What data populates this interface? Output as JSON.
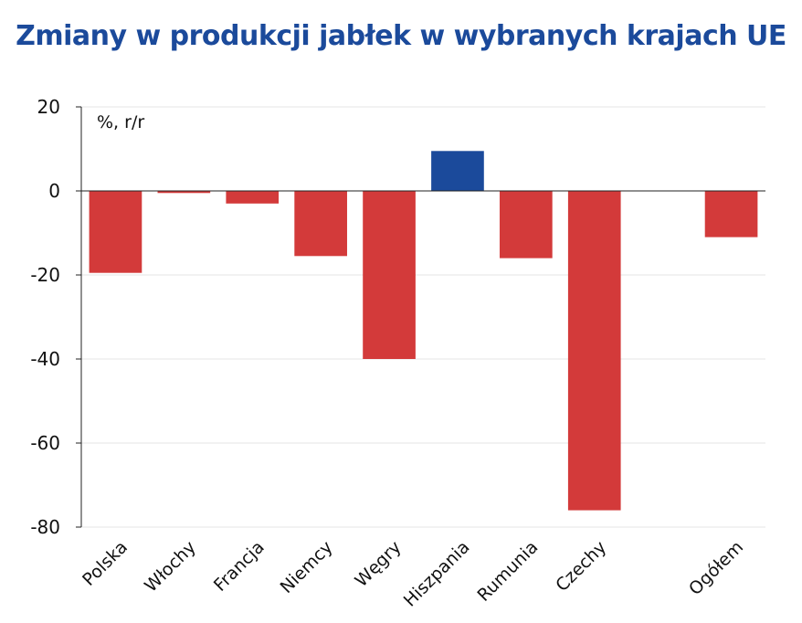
{
  "chart_data": {
    "type": "bar",
    "title": "Zmiany w produkcji jabłek w wybranych krajach UE",
    "unit_label": "%, r/r",
    "categories": [
      "Polska",
      "Włochy",
      "Francja",
      "Niemcy",
      "Węgry",
      "Hiszpania",
      "Rumunia",
      "Czechy",
      "",
      "Ogółem"
    ],
    "values": [
      -19.5,
      -0.5,
      -3,
      -15.5,
      -40,
      9.5,
      -16,
      -76,
      null,
      -11
    ],
    "ylim": [
      -80,
      20
    ],
    "yticks": [
      20,
      0,
      -20,
      -40,
      -60,
      -80
    ],
    "grid": true,
    "colors": {
      "negative": "#d33a3a",
      "positive": "#1b4a9b",
      "title": "#1b4a9b"
    }
  }
}
